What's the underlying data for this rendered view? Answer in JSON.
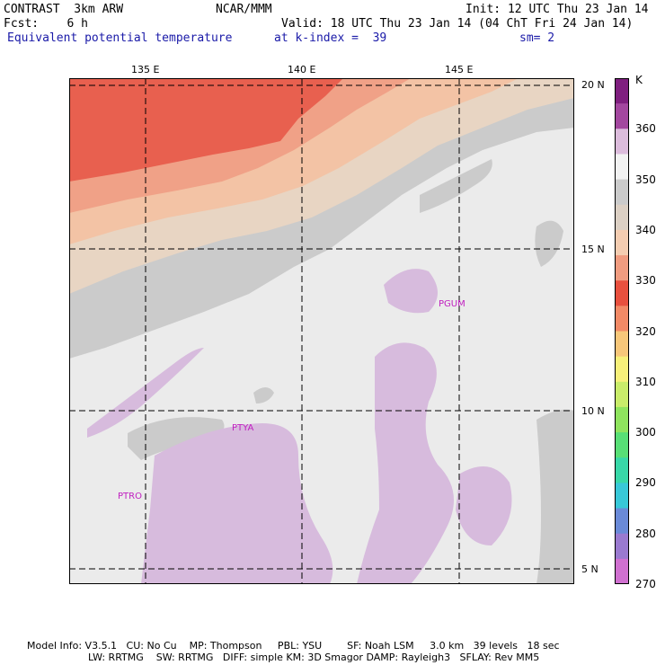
{
  "header": {
    "model": "CONTRAST  3km ARW",
    "org": "NCAR/MMM",
    "init": "Init: 12 UTC Thu 23 Jan 14",
    "fcst": "Fcst:    6 h",
    "valid": "Valid: 18 UTC Thu 23 Jan 14 (04 ChT Fri 24 Jan 14)",
    "field": "Equivalent potential temperature",
    "level": "at k-index =  39",
    "smooth": "sm= 2"
  },
  "map": {
    "lon_ticks": [
      "135 E",
      "140 E",
      "145 E"
    ],
    "lat_ticks": [
      "20 N",
      "15 N",
      "10 N",
      "5 N"
    ],
    "stations": [
      "PGUM",
      "PTYA",
      "PTRO"
    ],
    "colors": {
      "c270": "#d7bbdd",
      "c360": "#ebebeb",
      "c350": "#cbcbcb",
      "c340": "#e8d5c3",
      "c335": "#f3c3a5",
      "c330": "#f0a187",
      "c325": "#e8604f"
    }
  },
  "colorbar": {
    "unit": "K",
    "labels": [
      "360",
      "350",
      "340",
      "330",
      "320",
      "310",
      "300",
      "290",
      "280",
      "270"
    ],
    "colors": [
      "#7f1f7f",
      "#a3479f",
      "#dcbcdc",
      "#f2f2f2",
      "#cbcbcb",
      "#dcd0c4",
      "#f4cdb1",
      "#f09c80",
      "#e8503e",
      "#f28a66",
      "#f7c77a",
      "#f7f07a",
      "#c9ec6a",
      "#8fe45e",
      "#58df76",
      "#38d8a8",
      "#38c8d8",
      "#6a8ad8",
      "#9a7ad0",
      "#d070d0"
    ]
  },
  "footer": {
    "line1": "Model Info: V3.5.1   CU: No Cu    MP: Thompson     PBL: YSU        SF: Noah LSM     3.0 km   39 levels   18 sec",
    "line2": "LW: RRTMG    SW: RRTMG   DIFF: simple KM: 3D Smagor DAMP: Rayleigh3   SFLAY: Rev MM5"
  }
}
